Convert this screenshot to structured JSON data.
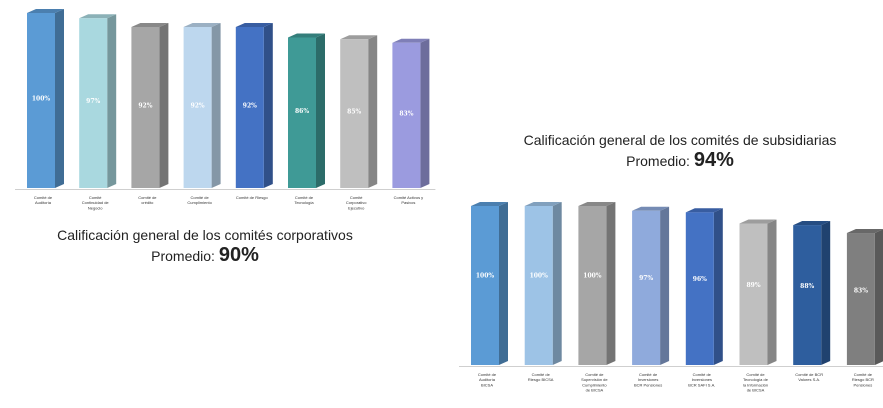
{
  "chart_data": [
    {
      "type": "bar",
      "title": "Calificación general de los comités corporativos",
      "subtitle_label": "Promedio:",
      "subtitle_value": "90%",
      "categories": [
        "Comité de Auditoría",
        "Comité Continuidad de Negocio",
        "Comité de crédito",
        "Comité de Cumplimiento",
        "Comité de Riesgo",
        "Comité de Tecnología",
        "Comité Corporativo Ejecutivo",
        "Comité Activos y Pasivos"
      ],
      "values": [
        100,
        97,
        92,
        92,
        92,
        86,
        85,
        83
      ],
      "value_labels": [
        "100%",
        "97%",
        "92%",
        "92%",
        "92%",
        "86%",
        "85%",
        "83%"
      ],
      "colors": [
        "#5b9bd5",
        "#a9d8df",
        "#a6a6a6",
        "#bdd7ee",
        "#4472c4",
        "#3f9a96",
        "#bfbfbf",
        "#9b9bdf"
      ],
      "ylim": [
        0,
        100
      ],
      "grid": false,
      "legend": false
    },
    {
      "type": "bar",
      "title": "Calificación general de los comités de subsidiarias",
      "subtitle_label": "Promedio:",
      "subtitle_value": "94%",
      "categories": [
        "Comité de Auditoría BICSA",
        "Comité de Riesgo BICSA",
        "Comité de Supervisión de Cumplimiento de BICSA",
        "Comité de Inversiones BCR Pensiones",
        "Comité de Inversiones BCR SAFI S.A.",
        "Comité de Tecnología de la Información de BICSA",
        "Comité de BCR Valores S.A.",
        "Comité de Riesgo BCR Pensiones"
      ],
      "values": [
        100,
        100,
        100,
        97,
        96,
        89,
        88,
        83
      ],
      "value_labels": [
        "100%",
        "100%",
        "100%",
        "97%",
        "96%",
        "89%",
        "88%",
        "83%"
      ],
      "colors": [
        "#5b9bd5",
        "#9dc3e6",
        "#a6a6a6",
        "#8faadc",
        "#4472c4",
        "#bfbfbf",
        "#2e5e9e",
        "#7f7f7f"
      ],
      "ylim": [
        0,
        100
      ],
      "grid": false,
      "legend": false
    }
  ]
}
